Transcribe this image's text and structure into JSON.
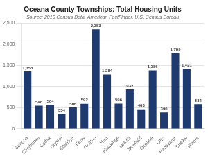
{
  "chart_data": {
    "type": "bar",
    "title": "Oceana County Townships: Total Housing Units",
    "subtitle": "Source: 2010 Census Data, American FactFinder, U.S. Census Bureau",
    "categories": [
      "Benona",
      "Claybanks",
      "Colfax",
      "Crystal",
      "Elbridge",
      "Ferry",
      "Golden",
      "Hart",
      "Hawkings",
      "Leavitt",
      "Newfield",
      "Oceana",
      "Otto",
      "Pentwater",
      "Shelby",
      "Weare"
    ],
    "values": [
      1358,
      548,
      564,
      354,
      506,
      592,
      2353,
      1284,
      596,
      932,
      463,
      1386,
      390,
      1789,
      1421,
      584
    ],
    "value_labels": [
      "1,358",
      "548",
      "564",
      "354",
      "506",
      "592",
      "2,353",
      "1,284",
      "596",
      "932",
      "463",
      "1,386",
      "390",
      "1,789",
      "1,421",
      "584"
    ],
    "data_labels": true,
    "color": "#1e3a6e",
    "ylim": [
      0,
      2500
    ],
    "yticks": [
      0,
      500,
      {
        "value": 1000,
        "label": "1,000"
      },
      {
        "value": 1500,
        "label": "1,500"
      },
      {
        "value": 2000,
        "label": "2,000"
      },
      {
        "value": 2500,
        "label": "2,500"
      }
    ],
    "grid": true
  }
}
